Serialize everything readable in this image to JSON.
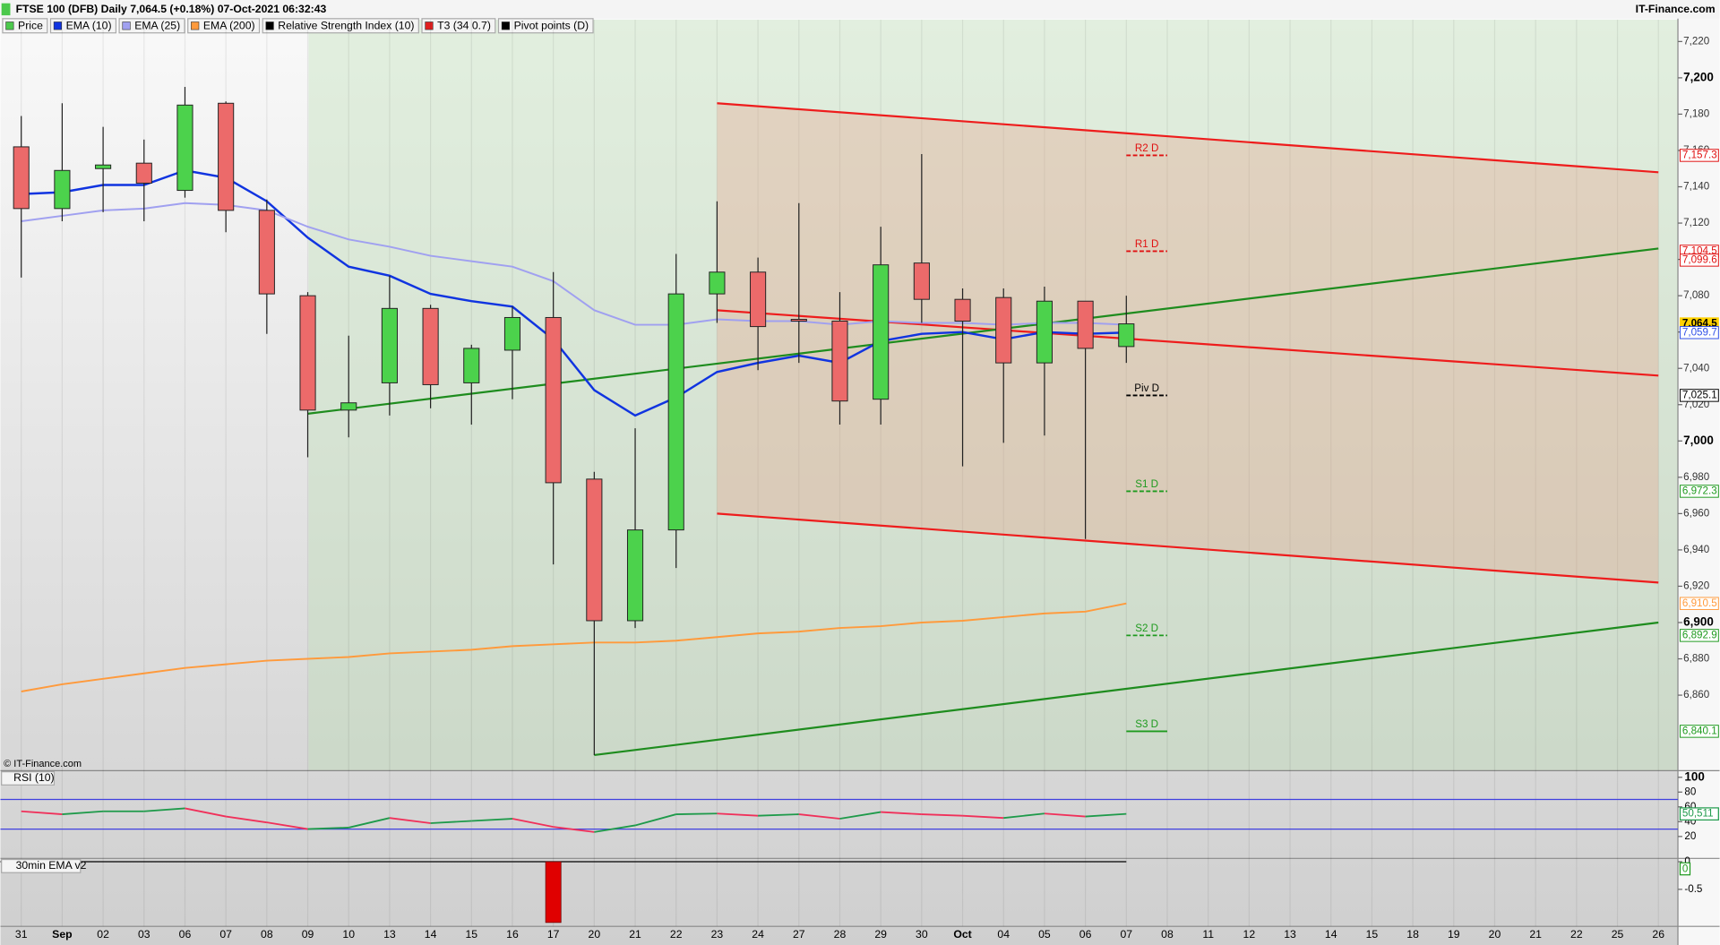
{
  "header": {
    "title": "FTSE 100 (DFB) Daily 7,064.5 (+0.18%) 07-Oct-2021 06:32:43",
    "brand": "IT-Finance.com",
    "copyright": "© IT-Finance.com"
  },
  "legend": [
    {
      "name": "Price",
      "color": "#4cc94c"
    },
    {
      "name": "EMA (10)",
      "color": "#1034e0"
    },
    {
      "name": "EMA (25)",
      "color": "#a0a0f0"
    },
    {
      "name": "EMA (200)",
      "color": "#ff9a3c"
    },
    {
      "name": "Relative Strength Index (10)",
      "color": "#000000"
    },
    {
      "name": "T3 (34 0.7)",
      "color": "#e02020"
    },
    {
      "name": "Pivot points (D)",
      "color": "#000000"
    }
  ],
  "chart_data": [
    {
      "type": "candlestick",
      "categories": [
        "31",
        "Sep",
        "02",
        "03",
        "06",
        "07",
        "08",
        "09",
        "10",
        "13",
        "14",
        "15",
        "16",
        "17",
        "20",
        "21",
        "22",
        "23",
        "24",
        "27",
        "28",
        "29",
        "30",
        "Oct",
        "04",
        "05",
        "06",
        "07",
        "08",
        "11",
        "12",
        "13",
        "14",
        "15",
        "18",
        "19",
        "20",
        "21",
        "22",
        "25",
        "26"
      ],
      "open": [
        7162,
        7128,
        7150,
        7153,
        7138,
        7186,
        7127,
        7080,
        7017,
        7032,
        7073,
        7032,
        7050,
        7068,
        6979,
        6901,
        6951,
        7081,
        7093,
        7067,
        7066,
        7023,
        7098,
        7078,
        7079,
        7043,
        7077,
        7052,
        null,
        null,
        null,
        null,
        null,
        null,
        null,
        null,
        null,
        null,
        null,
        null,
        null
      ],
      "high": [
        7179,
        7186,
        7173,
        7166,
        7195,
        7187,
        7133,
        7082,
        7058,
        7091,
        7075,
        7053,
        7074,
        7093,
        6983,
        7007,
        7103,
        7132,
        7101,
        7131,
        7082,
        7118,
        7158,
        7084,
        7084,
        7085,
        7077,
        7080,
        null,
        null,
        null,
        null,
        null,
        null,
        null,
        null,
        null,
        null,
        null,
        null,
        null
      ],
      "low": [
        7090,
        7121,
        7126,
        7121,
        7134,
        7115,
        7059,
        6991,
        7002,
        7014,
        7018,
        7009,
        7023,
        6932,
        6827,
        6897,
        6930,
        7065,
        7039,
        7043,
        7009,
        7009,
        7065,
        6986,
        6999,
        7003,
        6946,
        7043,
        null,
        null,
        null,
        null,
        null,
        null,
        null,
        null,
        null,
        null,
        null,
        null,
        null
      ],
      "close": [
        7128,
        7149,
        7152,
        7142,
        7185,
        7127,
        7081,
        7017,
        7021,
        7073,
        7031,
        7051,
        7068,
        6977,
        6901,
        6951,
        7081,
        7093,
        7063,
        7066,
        7022,
        7097,
        7078,
        7066,
        7043,
        7077,
        7051,
        7064.5,
        null,
        null,
        null,
        null,
        null,
        null,
        null,
        null,
        null,
        null,
        null,
        null,
        null
      ],
      "up_color": "#4cd24c",
      "down_color": "#ec6a6a",
      "series": [
        {
          "name": "EMA (10)",
          "color": "#1034e0",
          "values": [
            7136,
            7137,
            7141,
            7141,
            7149,
            7145,
            7132,
            7112,
            7096,
            7091,
            7081,
            7077,
            7074,
            7056,
            7028,
            7014,
            7024,
            7038,
            7043,
            7047,
            7043,
            7055,
            7059,
            7060,
            7056,
            7060,
            7059,
            7059.7,
            null,
            null,
            null,
            null,
            null,
            null,
            null,
            null,
            null,
            null,
            null,
            null,
            null
          ]
        },
        {
          "name": "EMA (25)",
          "color": "#a0a0f0",
          "values": [
            7121,
            7124,
            7127,
            7128,
            7131,
            7130,
            7127,
            7118,
            7111,
            7107,
            7102,
            7099,
            7096,
            7088,
            7072,
            7064,
            7064,
            7067,
            7066,
            7066,
            7064,
            7066,
            7065,
            7065,
            7064,
            7065,
            7065,
            7064,
            null,
            null,
            null,
            null,
            null,
            null,
            null,
            null,
            null,
            null,
            null,
            null,
            null
          ]
        },
        {
          "name": "EMA (200)",
          "color": "#ff9a3c",
          "values": [
            6862,
            6866,
            6869,
            6872,
            6875,
            6877,
            6879,
            6880,
            6881,
            6883,
            6884,
            6885,
            6887,
            6888,
            6889,
            6889,
            6890,
            6892,
            6894,
            6895,
            6897,
            6898,
            6900,
            6901,
            6903,
            6905,
            6906,
            6910.5,
            null,
            null,
            null,
            null,
            null,
            null,
            null,
            null,
            null,
            null,
            null,
            null,
            null
          ]
        }
      ],
      "trendlines": [
        {
          "color": "#ee1c1c",
          "from": "23",
          "from_value": 7186,
          "to": "26",
          "to_value": 7148
        },
        {
          "color": "#ee1c1c",
          "from": "23",
          "from_value": 7072,
          "to": "26",
          "to_value": 7036
        },
        {
          "color": "#ee1c1c",
          "from": "23",
          "from_value": 6960,
          "to": "26",
          "to_value": 6922
        },
        {
          "color": "#1e8c1e",
          "from": "09",
          "from_value": 7015,
          "to": "26",
          "to_value": 7106
        },
        {
          "color": "#1e8c1e",
          "from": "20",
          "from_value": 6827,
          "to": "26",
          "to_value": 6900
        }
      ],
      "pivots": [
        {
          "label": "R2 D",
          "value": 7157.3,
          "value_label": "7,157.3",
          "color": "#e01010"
        },
        {
          "label": "R1 D",
          "value": 7104.5,
          "value_label": "7,104.5",
          "color": "#e01010"
        },
        {
          "label": "Piv D",
          "value": 7025.1,
          "value_label": "7,025.1",
          "color": "#000000"
        },
        {
          "label": "S1 D",
          "value": 6972.3,
          "value_label": "6,972.3",
          "color": "#1e9a1e"
        },
        {
          "label": "S2 D",
          "value": 6892.9,
          "value_label": "6,892.9",
          "color": "#1e9a1e"
        },
        {
          "label": "S3 D",
          "value": 6840.1,
          "value_label": "6,840.1",
          "color": "#1e9a1e"
        }
      ],
      "price_labels": [
        {
          "value": 7099.6,
          "label": "7,099.6",
          "color": "#e01010"
        },
        {
          "value": 7064.5,
          "label": "7,064.5",
          "color": "#ffd200"
        },
        {
          "value": 7059.7,
          "label": "7,059.7",
          "color": "#3050e8"
        },
        {
          "value": 6910.5,
          "label": "6,910.5",
          "color": "#ff9a3c"
        }
      ],
      "ylim": [
        6818.4,
        7232
      ],
      "yticks": [
        {
          "value": 6860,
          "label": "6,860"
        },
        {
          "value": 6880,
          "label": "6,880"
        },
        {
          "value": 6900,
          "label": "6,900"
        },
        {
          "value": 6920,
          "label": "6,920"
        },
        {
          "value": 6940,
          "label": "6,940"
        },
        {
          "value": 6960,
          "label": "6,960"
        },
        {
          "value": 6980,
          "label": "6,980"
        },
        {
          "value": 7000,
          "label": "7,000"
        },
        {
          "value": 7020,
          "label": "7,020"
        },
        {
          "value": 7040,
          "label": "7,040"
        },
        {
          "value": 7060,
          "label": "7,060"
        },
        {
          "value": 7080,
          "label": "7,080"
        },
        {
          "value": 7100,
          "label": "7,100"
        },
        {
          "value": 7120,
          "label": "7,120"
        },
        {
          "value": 7140,
          "label": "7,140"
        },
        {
          "value": 7160,
          "label": "7,160"
        },
        {
          "value": 7180,
          "label": "7,180"
        },
        {
          "value": 7200,
          "label": "7,200"
        },
        {
          "value": 7220,
          "label": "7,220"
        }
      ]
    },
    {
      "type": "line",
      "title": "RSI (10)",
      "up_color": "#1e9a4a",
      "down_color": "#f0305a",
      "values": [
        54,
        50,
        54,
        54,
        58,
        47,
        39,
        30,
        32,
        45,
        38,
        41,
        44,
        33,
        26,
        35,
        50,
        51,
        48,
        50,
        44,
        53,
        50,
        48,
        45,
        51,
        47,
        50.511,
        null,
        null,
        null,
        null,
        null,
        null,
        null,
        null,
        null,
        null,
        null,
        null,
        null
      ],
      "value_label": "50,511",
      "levels": [
        70,
        30
      ],
      "level_color": "#4040e0",
      "ylim": [
        -9.6,
        108.9
      ],
      "yticks": [
        100,
        80,
        60,
        40,
        20
      ]
    },
    {
      "type": "bar",
      "title": "30min EMA v2",
      "color": "#e00000",
      "values": [
        0,
        0,
        0,
        0,
        0,
        0,
        0,
        0,
        0,
        0,
        0,
        0,
        0,
        -1.1,
        0,
        0,
        0,
        0,
        0,
        0,
        0,
        0,
        0,
        0,
        0,
        0,
        0,
        0,
        null,
        null,
        null,
        null,
        null,
        null,
        null,
        null,
        null,
        null,
        null,
        null,
        null
      ],
      "value_label": "0",
      "ylim": [
        -1.17,
        0.06
      ],
      "yticks": [
        0,
        -0.5
      ]
    }
  ]
}
